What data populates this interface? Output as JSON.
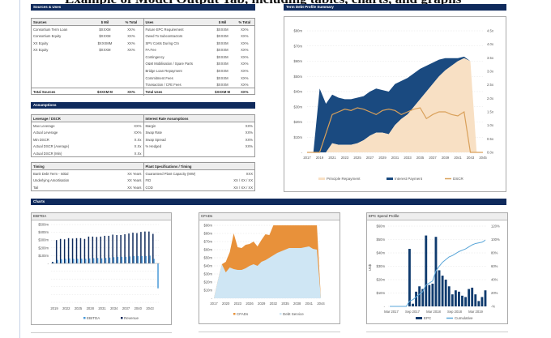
{
  "page": {
    "title": "Example of Model Output Tab, including tables, charts, and graphs"
  },
  "sources_uses": {
    "header": "Sources & Uses",
    "sources_cols": [
      "Sources",
      "$ Mil",
      "% Total"
    ],
    "uses_cols": [
      "Uses",
      "$ Mil",
      "% Total"
    ],
    "sources": [
      [
        "Consortium Term Loan",
        "$XXXM",
        "XX%"
      ],
      [
        "Consortium Equity",
        "$XXXM",
        "XX%"
      ],
      [
        "XX Equity",
        "$XXXMM",
        "XX%"
      ],
      [
        "XX Equity",
        "$XXXM",
        "XX%"
      ]
    ],
    "uses": [
      [
        "Future EPC Requirement",
        "$XXXM",
        "XX%"
      ],
      [
        "Owed To Subcontractors",
        "$XXXM",
        "XX%"
      ],
      [
        "SPV Costs During Ctn",
        "$XXXM",
        "XX%"
      ],
      [
        "FA Fee",
        "$XXXM",
        "XX%"
      ],
      [
        "Contingency",
        "$XXXM",
        "XX%"
      ],
      [
        "O&M Mobilisation / Spare Parts",
        "$XXXM",
        "XX%"
      ],
      [
        "Bridge Loan Repayment",
        "$XXXM",
        "XX%"
      ],
      [
        "Commitment Fees",
        "$XXXM",
        "XX%"
      ],
      [
        "Transaction / CFE Fees",
        "$XXXM",
        "XX%"
      ]
    ],
    "total_sources": [
      "Total Sources",
      "$XXXM M",
      "XX%"
    ],
    "total_uses": [
      "Total Uses",
      "$XXXM M",
      "XX%"
    ]
  },
  "assumptions": {
    "header": "Assumptions",
    "leverage_title": "Leverage / DSCR",
    "leverage": [
      [
        "Max Leverage",
        "XX%"
      ],
      [
        "Actual Leverage",
        "XX%"
      ],
      [
        "Min DSCR",
        "X.Xx"
      ],
      [
        "Actual DSCR (Average)",
        "X.Xx"
      ],
      [
        "Actual DSCR (Min)",
        "X.Xx"
      ]
    ],
    "interest_title": "Interest Rate Assumptions",
    "interest": [
      [
        "Margin",
        "XX%"
      ],
      [
        "Swap Rate",
        "XX%"
      ],
      [
        "Swap Spread",
        "XX%"
      ],
      [
        "% Hedged",
        "XX%"
      ]
    ],
    "timing_title": "Timing",
    "timing": [
      [
        "Bank Debt Term - Initial",
        "XX Years"
      ],
      [
        "Underlying Amortisation",
        "XX Years"
      ],
      [
        "Tail",
        "XX Years"
      ]
    ],
    "plant_title": "Plant Specifications / Timing",
    "plant": [
      [
        "Guaranteed Plant Capacity (MW)",
        "XXX"
      ],
      [
        "FID",
        "XX / XX / XX"
      ],
      [
        "COD",
        "XX / XX / XX"
      ]
    ]
  },
  "term_debt": {
    "header": "Term Debt Profile Summary"
  },
  "charts": {
    "header": "Charts"
  },
  "chart_data": [
    {
      "type": "area",
      "title": "",
      "x": [
        2017,
        2018,
        2019,
        2020,
        2021,
        2022,
        2023,
        2024,
        2025,
        2026,
        2027,
        2028,
        2029,
        2030,
        2031,
        2032,
        2033,
        2034,
        2035,
        2036,
        2037,
        2038,
        2039,
        2040,
        2041,
        2042,
        2043,
        2044,
        2045
      ],
      "xticks": [
        "2017",
        "2019",
        "2021",
        "2023",
        "2025",
        "2027",
        "2029",
        "2031",
        "2033",
        "2035",
        "2037",
        "2039",
        "2041",
        "2043",
        "2045"
      ],
      "yticks_left": [
        "$80m",
        "$70m",
        "$60m",
        "$50m",
        "$40m",
        "$30m",
        "$20m",
        "$10m",
        "-"
      ],
      "ylim_left": [
        0,
        80
      ],
      "yticks_right": [
        "4.5x",
        "4.0x",
        "3.5x",
        "3.0x",
        "2.5x",
        "2.0x",
        "1.5x",
        "1.0x",
        "0.5x",
        "0.0x"
      ],
      "ylim_right": [
        0,
        4.5
      ],
      "series": [
        {
          "name": "Principle Repayment",
          "kind": "area",
          "color": "#f8e0c4",
          "values": [
            0,
            0,
            0,
            0,
            6,
            5,
            5,
            5,
            6,
            8,
            11,
            13,
            13,
            12,
            18,
            22,
            25,
            30,
            35,
            40,
            45,
            50,
            54,
            57,
            60,
            62,
            60,
            0,
            0
          ]
        },
        {
          "name": "Interest Payment",
          "kind": "area-stacked",
          "color": "#1a4a80",
          "values": [
            0,
            0,
            42,
            32,
            32,
            31,
            30,
            30,
            30,
            29,
            29,
            29,
            28,
            28,
            27,
            25,
            24,
            22,
            20,
            17,
            14,
            11,
            8,
            5,
            2,
            1,
            0,
            0,
            0
          ]
        },
        {
          "name": "DSCR",
          "kind": "line",
          "axis": "right",
          "color": "#d9a05a",
          "values": [
            0,
            0,
            0,
            0.7,
            1.4,
            1.5,
            1.6,
            1.55,
            1.65,
            1.6,
            1.5,
            1.4,
            1.55,
            1.6,
            1.55,
            1.4,
            1.5,
            1.6,
            1.65,
            1.25,
            1.4,
            1.5,
            1.5,
            1.4,
            1.35,
            1.5,
            0,
            0,
            0
          ]
        }
      ],
      "legend": "bottom",
      "grid": true
    },
    {
      "type": "bar",
      "title": "EBITDA",
      "x": [
        2019,
        2020,
        2021,
        2022,
        2023,
        2024,
        2025,
        2026,
        2027,
        2028,
        2029,
        2030,
        2031,
        2032,
        2033,
        2034,
        2035,
        2036,
        2037,
        2038,
        2039,
        2040,
        2041,
        2042,
        2043,
        2044,
        2045
      ],
      "xticks": [
        "2019",
        "2022",
        "2025",
        "2028",
        "2031",
        "2034",
        "2037",
        "2040",
        "2043"
      ],
      "yticks": [
        "$500m",
        "$400m",
        "$300m",
        "$200m",
        "$100m",
        "-"
      ],
      "ylim": [
        -500,
        500
      ],
      "series": [
        {
          "name": "EBITDA",
          "color": "#4a9ad8",
          "values": [
            15,
            45,
            55,
            60,
            65,
            60,
            60,
            62,
            60,
            65,
            68,
            70,
            65,
            70,
            75,
            80,
            85,
            85,
            85,
            90,
            95,
            95,
            95,
            95,
            100,
            60,
            -320
          ]
        },
        {
          "name": "Revenue",
          "color": "#0f2a5c",
          "values": [
            20,
            300,
            315,
            310,
            325,
            320,
            325,
            325,
            315,
            345,
            345,
            340,
            345,
            355,
            355,
            370,
            365,
            365,
            375,
            385,
            395,
            390,
            405,
            410,
            410,
            380,
            0
          ]
        }
      ],
      "legend": "bottom"
    },
    {
      "type": "area",
      "title": "CFADs",
      "x": [
        2017,
        2018,
        2019,
        2020,
        2021,
        2022,
        2023,
        2024,
        2025,
        2026,
        2027,
        2028,
        2029,
        2030,
        2031,
        2032,
        2033,
        2034,
        2035,
        2036,
        2037,
        2038,
        2039,
        2040,
        2041,
        2042,
        2043,
        2044
      ],
      "xticks": [
        "2017",
        "2020",
        "2023",
        "2026",
        "2029",
        "2032",
        "2035",
        "2038",
        "2041",
        "2044"
      ],
      "yticks": [
        "$90m",
        "$80m",
        "$70m",
        "$60m",
        "$50m",
        "$40m",
        "$30m",
        "$20m",
        "$10m",
        "-"
      ],
      "ylim": [
        0,
        90
      ],
      "series": [
        {
          "name": "CFADs",
          "color": "#e8913a",
          "values": [
            0,
            22,
            42,
            45,
            57,
            80,
            63,
            62,
            66,
            67,
            70,
            64,
            72,
            79,
            78,
            90,
            90,
            90,
            90,
            90,
            90,
            90,
            90,
            90,
            90,
            90,
            90,
            0
          ]
        },
        {
          "name": "Debt Service",
          "color": "#cfe6f4",
          "values": [
            0,
            22,
            42,
            32,
            38,
            36,
            35,
            35,
            37,
            40,
            42,
            40,
            45,
            47,
            50,
            53,
            56,
            58,
            60,
            62,
            62,
            62,
            62,
            63,
            64,
            61,
            60,
            0
          ]
        }
      ],
      "legend": "bottom"
    },
    {
      "type": "bar",
      "title": "EPC Spend Profile",
      "ylabel": "US$",
      "x": [
        "Mar 2017",
        "Apr 2017",
        "May 2017",
        "Jun 2017",
        "Jul 2017",
        "Aug 2017",
        "Sep 2017",
        "Oct 2017",
        "Nov 2017",
        "Dec 2017",
        "Jan 2018",
        "Feb 2018",
        "Mar 2018",
        "Apr 2018",
        "May 2018",
        "Jun 2018",
        "Jul 2018",
        "Aug 2018",
        "Sep 2018",
        "Oct 2018",
        "Nov 2018",
        "Dec 2018",
        "Jan 2019",
        "Feb 2019",
        "Mar 2019",
        "Apr 2019",
        "May 2019",
        "Jun 2019",
        "Jul 2019",
        "Aug 2019"
      ],
      "xticks": [
        "Mar 2017",
        "Sep 2017",
        "Mar 2018",
        "Sep 2018",
        "Mar 2019"
      ],
      "yticks_left": [
        "$60m",
        "$50m",
        "$40m",
        "$30m",
        "$20m",
        "$10m",
        "-"
      ],
      "ylim_left": [
        0,
        60
      ],
      "yticks_right": [
        "120%",
        "100%",
        "80%",
        "60%",
        "40%",
        "20%",
        "-%"
      ],
      "ylim_right": [
        0,
        120
      ],
      "series": [
        {
          "name": "EPC",
          "kind": "bar",
          "color": "#0f3b6e",
          "values": [
            0,
            0,
            0,
            0,
            0,
            0,
            43,
            2,
            11,
            15,
            13,
            53,
            16,
            17,
            52,
            27,
            23,
            20,
            15,
            9,
            12,
            11,
            8,
            7,
            13,
            14,
            9,
            4,
            7,
            12
          ]
        },
        {
          "name": "Cumulative",
          "kind": "line",
          "axis": "right",
          "color": "#5aa6d8",
          "values": [
            0,
            0,
            0,
            0,
            0,
            0,
            8,
            10,
            14,
            18,
            22,
            32,
            35,
            38,
            53,
            60,
            66,
            70,
            74,
            76,
            79,
            82,
            84,
            86,
            89,
            92,
            94,
            95,
            96,
            99
          ]
        }
      ],
      "legend": "bottom"
    }
  ]
}
